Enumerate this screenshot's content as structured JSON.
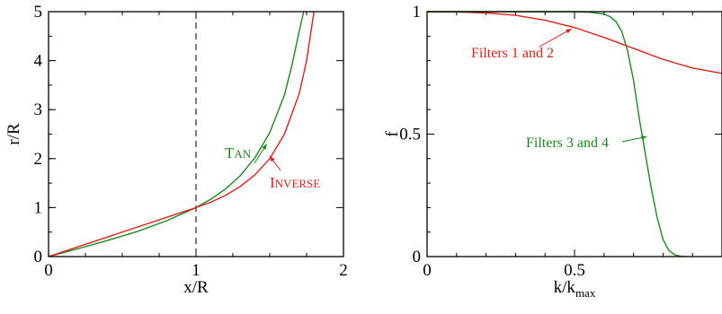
{
  "chart_data": [
    {
      "type": "line",
      "xlabel": "x/R",
      "ylabel": "r/R",
      "xlim": [
        0,
        2
      ],
      "ylim": [
        0,
        5
      ],
      "xticks": [
        0,
        1,
        2
      ],
      "yticks": [
        0,
        1,
        2,
        3,
        4,
        5
      ],
      "reference_line": {
        "x": 1,
        "style": "dashed"
      },
      "series": [
        {
          "name": "TAN",
          "color": "#1a8a1a",
          "x": [
            0,
            0.2,
            0.4,
            0.6,
            0.8,
            1.0,
            1.1,
            1.2,
            1.3,
            1.4,
            1.5,
            1.6,
            1.65,
            1.7,
            1.73
          ],
          "y": [
            0,
            0.16,
            0.33,
            0.51,
            0.73,
            1.0,
            1.17,
            1.38,
            1.65,
            2.02,
            2.53,
            3.3,
            3.9,
            4.6,
            5.0
          ]
        },
        {
          "name": "INVERSE",
          "color": "#e0201b",
          "x": [
            0,
            0.2,
            0.4,
            0.6,
            0.8,
            1.0,
            1.1,
            1.2,
            1.3,
            1.4,
            1.5,
            1.6,
            1.7,
            1.75,
            1.8
          ],
          "y": [
            0,
            0.2,
            0.4,
            0.6,
            0.8,
            1.0,
            1.11,
            1.25,
            1.43,
            1.67,
            2.0,
            2.5,
            3.33,
            4.0,
            5.0
          ]
        }
      ],
      "annotations": [
        {
          "text": "TAN",
          "color": "#1a8a1a",
          "points_to": {
            "x": 1.48,
            "y": 2.3
          }
        },
        {
          "text": "INVERSE",
          "color": "#e0201b",
          "points_to": {
            "x": 1.5,
            "y": 2.05
          }
        }
      ]
    },
    {
      "type": "line",
      "xlabel": "k/k",
      "xlabel_sub": "max",
      "ylabel": "f",
      "xlim": [
        0,
        1
      ],
      "ylim": [
        0,
        1
      ],
      "xticks": [
        0,
        0.5
      ],
      "xtick_labels": [
        "0",
        "0.5"
      ],
      "yticks": [
        0,
        0.5,
        1
      ],
      "ytick_labels": [
        "0",
        "0.5",
        "1"
      ],
      "series": [
        {
          "name": "Filters 1 and 2",
          "color": "#e0201b",
          "x": [
            0,
            0.1,
            0.2,
            0.3,
            0.4,
            0.5,
            0.6,
            0.7,
            0.8,
            0.9,
            1.0
          ],
          "y": [
            1.0,
            0.999,
            0.995,
            0.985,
            0.965,
            0.935,
            0.895,
            0.85,
            0.805,
            0.77,
            0.748
          ]
        },
        {
          "name": "Filters 3 and 4",
          "color": "#1a8a1a",
          "x": [
            0,
            0.5,
            0.55,
            0.6,
            0.62,
            0.64,
            0.66,
            0.68,
            0.7,
            0.72,
            0.74,
            0.76,
            0.78,
            0.8,
            0.82,
            0.84,
            0.86,
            0.88
          ],
          "y": [
            1.0,
            1.0,
            0.998,
            0.99,
            0.98,
            0.96,
            0.92,
            0.84,
            0.72,
            0.56,
            0.42,
            0.28,
            0.16,
            0.07,
            0.025,
            0.007,
            0.001,
            0.0
          ]
        }
      ],
      "annotations": [
        {
          "text": "Filters 1 and 2",
          "color": "#e0201b",
          "points_to": {
            "x": 0.49,
            "y": 0.93
          }
        },
        {
          "text": "Filters 3 and 4",
          "color": "#1a8a1a",
          "points_to": {
            "x": 0.745,
            "y": 0.49
          }
        }
      ]
    }
  ]
}
